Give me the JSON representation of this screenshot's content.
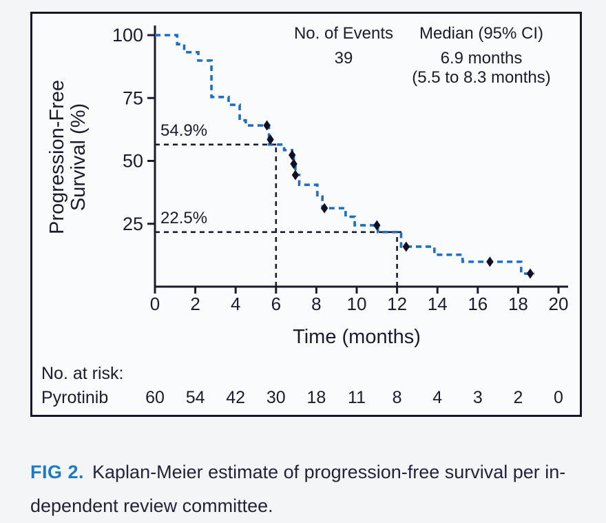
{
  "annotations": {
    "events_header": "No. of Events",
    "events_value": "39",
    "median_header": "Median (95% CI)",
    "median_value": "6.9 months",
    "median_ci": "(5.5 to 8.3 months)"
  },
  "chart_data": {
    "type": "line",
    "subtype": "kaplan-meier-step",
    "title": "",
    "xlabel": "Time (months)",
    "ylabel": "Progression-Free Survival (%)",
    "ylabel_lines": [
      "Progression-Free",
      "Survival (%)"
    ],
    "xlim": [
      0,
      20
    ],
    "ylim": [
      0,
      100
    ],
    "x_ticks": [
      0,
      2,
      4,
      6,
      8,
      10,
      12,
      14,
      16,
      18,
      20
    ],
    "y_ticks": [
      100,
      75,
      50,
      25
    ],
    "grid": false,
    "line_style": "dashed",
    "series": [
      {
        "name": "Pyrotinib",
        "color": "#1b6fc7",
        "steps": [
          [
            0,
            100
          ],
          [
            1.1,
            96.4
          ],
          [
            1.45,
            93.2
          ],
          [
            2.15,
            89.9
          ],
          [
            2.8,
            75.4
          ],
          [
            3.65,
            72.3
          ],
          [
            4.2,
            66.1
          ],
          [
            4.5,
            64.1
          ],
          [
            5.65,
            56.5
          ],
          [
            6.4,
            54.3
          ],
          [
            6.8,
            52.3
          ],
          [
            6.88,
            48.8
          ],
          [
            6.96,
            44.4
          ],
          [
            7.15,
            40.5
          ],
          [
            8.05,
            35.8
          ],
          [
            8.3,
            31.2
          ],
          [
            9.45,
            27.8
          ],
          [
            9.9,
            24.4
          ],
          [
            11.05,
            21.7
          ],
          [
            12.2,
            15.9
          ],
          [
            13.85,
            12.7
          ],
          [
            15.25,
            9.9
          ],
          [
            18.15,
            5.2
          ]
        ],
        "end_time": 18.8,
        "censor_marks": [
          [
            5.55,
            64.1
          ],
          [
            5.72,
            58.5
          ],
          [
            6.8,
            52.3
          ],
          [
            6.88,
            48.8
          ],
          [
            6.96,
            44.4
          ],
          [
            8.4,
            31.2
          ],
          [
            11.0,
            24.4
          ],
          [
            12.45,
            15.9
          ],
          [
            16.6,
            9.9
          ],
          [
            18.6,
            5.2
          ]
        ]
      }
    ],
    "reference_lines": [
      {
        "time": 6,
        "value": 54.9,
        "label": "54.9%",
        "drawn_level": 56.5
      },
      {
        "time": 12,
        "value": 22.5,
        "label": "22.5%",
        "drawn_level": 21.7
      }
    ]
  },
  "risk_table": {
    "header": "No. at risk:",
    "row_label": "Pyrotinib",
    "times": [
      0,
      2,
      4,
      6,
      8,
      10,
      12,
      14,
      16,
      18,
      20
    ],
    "values": [
      "60",
      "54",
      "42",
      "30",
      "18",
      "11",
      "8",
      "4",
      "3",
      "2",
      "0"
    ]
  },
  "caption": {
    "label": "FIG 2.",
    "line1": "Kaplan-Meier estimate of progression-free survival per in-",
    "line2": "dependent review committee."
  },
  "colors": {
    "ink": "#1b1b30",
    "curve_blue": "#1b6fc7",
    "censor": "#101024",
    "figure_label_blue": "#1b7cc4",
    "frame_border": "#17142e",
    "background": "#fafbfc"
  }
}
